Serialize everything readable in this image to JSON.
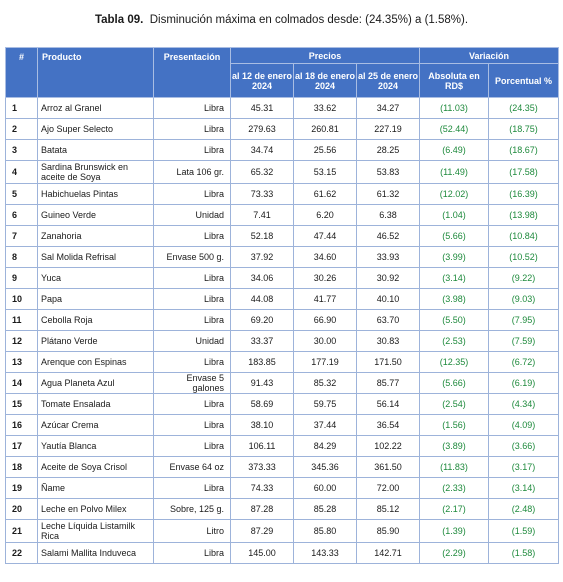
{
  "caption": {
    "label": "Tabla 09.",
    "text": "Disminución máxima en colmados desde: (24.35%) a (1.58%)."
  },
  "headers": {
    "num": "#",
    "producto": "Producto",
    "presentacion": "Presentación",
    "precios": "Precios",
    "variacion": "Variación",
    "d1": "al 12 de enero 2024",
    "d2": "al 18 de enero 2024",
    "d3": "al 25 de enero 2024",
    "absoluta": "Absoluta en RD$",
    "porcentual": "Porcentual %"
  },
  "colors": {
    "header_bg": "#4472c4",
    "variation_text": "#1e8a3c"
  },
  "rows": [
    {
      "n": "1",
      "producto": "Arroz al Granel",
      "presentacion": "Libra",
      "p1": "45.31",
      "p2": "33.62",
      "p3": "34.27",
      "abs": "(11.03)",
      "pct": "(24.35)"
    },
    {
      "n": "2",
      "producto": "Ajo  Super Selecto",
      "presentacion": "Libra",
      "p1": "279.63",
      "p2": "260.81",
      "p3": "227.19",
      "abs": "(52.44)",
      "pct": "(18.75)"
    },
    {
      "n": "3",
      "producto": "Batata",
      "presentacion": "Libra",
      "p1": "34.74",
      "p2": "25.56",
      "p3": "28.25",
      "abs": "(6.49)",
      "pct": "(18.67)"
    },
    {
      "n": "4",
      "producto": "Sardina Brunswick en aceite de Soya",
      "presentacion": "Lata 106 gr.",
      "p1": "65.32",
      "p2": "53.15",
      "p3": "53.83",
      "abs": "(11.49)",
      "pct": "(17.58)"
    },
    {
      "n": "5",
      "producto": "Habichuelas Pintas",
      "presentacion": "Libra",
      "p1": "73.33",
      "p2": "61.62",
      "p3": "61.32",
      "abs": "(12.02)",
      "pct": "(16.39)"
    },
    {
      "n": "6",
      "producto": "Guineo Verde",
      "presentacion": "Unidad",
      "p1": "7.41",
      "p2": "6.20",
      "p3": "6.38",
      "abs": "(1.04)",
      "pct": "(13.98)"
    },
    {
      "n": "7",
      "producto": "Zanahoria",
      "presentacion": "Libra",
      "p1": "52.18",
      "p2": "47.44",
      "p3": "46.52",
      "abs": "(5.66)",
      "pct": "(10.84)"
    },
    {
      "n": "8",
      "producto": " Sal Molida Refrisal",
      "presentacion": "Envase 500 g.",
      "p1": "37.92",
      "p2": "34.60",
      "p3": "33.93",
      "abs": "(3.99)",
      "pct": "(10.52)"
    },
    {
      "n": "9",
      "producto": " Yuca",
      "presentacion": "Libra",
      "p1": "34.06",
      "p2": "30.26",
      "p3": "30.92",
      "abs": "(3.14)",
      "pct": "(9.22)"
    },
    {
      "n": "10",
      "producto": " Papa",
      "presentacion": "Libra",
      "p1": "44.08",
      "p2": "41.77",
      "p3": "40.10",
      "abs": "(3.98)",
      "pct": "(9.03)"
    },
    {
      "n": "11",
      "producto": "Cebolla Roja",
      "presentacion": "Libra",
      "p1": "69.20",
      "p2": "66.90",
      "p3": "63.70",
      "abs": "(5.50)",
      "pct": "(7.95)"
    },
    {
      "n": "12",
      "producto": "Plátano Verde",
      "presentacion": "Unidad",
      "p1": "33.37",
      "p2": "30.00",
      "p3": "30.83",
      "abs": "(2.53)",
      "pct": "(7.59)"
    },
    {
      "n": "13",
      "producto": "Arenque con Espinas",
      "presentacion": "Libra",
      "p1": "183.85",
      "p2": "177.19",
      "p3": "171.50",
      "abs": "(12.35)",
      "pct": "(6.72)"
    },
    {
      "n": "14",
      "producto": "Agua Planeta Azul",
      "presentacion": "Envase 5 galones",
      "p1": "91.43",
      "p2": "85.32",
      "p3": "85.77",
      "abs": "(5.66)",
      "pct": "(6.19)"
    },
    {
      "n": "15",
      "producto": "Tomate Ensalada",
      "presentacion": "Libra",
      "p1": "58.69",
      "p2": "59.75",
      "p3": "56.14",
      "abs": "(2.54)",
      "pct": "(4.34)"
    },
    {
      "n": "16",
      "producto": "Azúcar Crema",
      "presentacion": "Libra",
      "p1": "38.10",
      "p2": "37.44",
      "p3": "36.54",
      "abs": "(1.56)",
      "pct": "(4.09)"
    },
    {
      "n": "17",
      "producto": "Yautía Blanca",
      "presentacion": "Libra",
      "p1": "106.11",
      "p2": "84.29",
      "p3": "102.22",
      "abs": "(3.89)",
      "pct": "(3.66)"
    },
    {
      "n": "18",
      "producto": "Aceite de Soya Crisol",
      "presentacion": "Envase 64 oz",
      "p1": "373.33",
      "p2": "345.36",
      "p3": "361.50",
      "abs": "(11.83)",
      "pct": "(3.17)"
    },
    {
      "n": "19",
      "producto": "Ñame",
      "presentacion": "Libra",
      "p1": "74.33",
      "p2": "60.00",
      "p3": "72.00",
      "abs": "(2.33)",
      "pct": "(3.14)"
    },
    {
      "n": "20",
      "producto": "Leche en Polvo Milex",
      "presentacion": "Sobre, 125 g.",
      "p1": "87.28",
      "p2": "85.28",
      "p3": "85.12",
      "abs": "(2.17)",
      "pct": "(2.48)"
    },
    {
      "n": "21",
      "producto": "Leche Líquida Listamilk Rica",
      "presentacion": "Litro",
      "p1": "87.29",
      "p2": "85.80",
      "p3": "85.90",
      "abs": "(1.39)",
      "pct": "(1.59)"
    },
    {
      "n": "22",
      "producto": "Salami Mallita Induveca",
      "presentacion": "Libra",
      "p1": "145.00",
      "p2": "143.33",
      "p3": "142.71",
      "abs": "(2.29)",
      "pct": "(1.58)"
    }
  ]
}
